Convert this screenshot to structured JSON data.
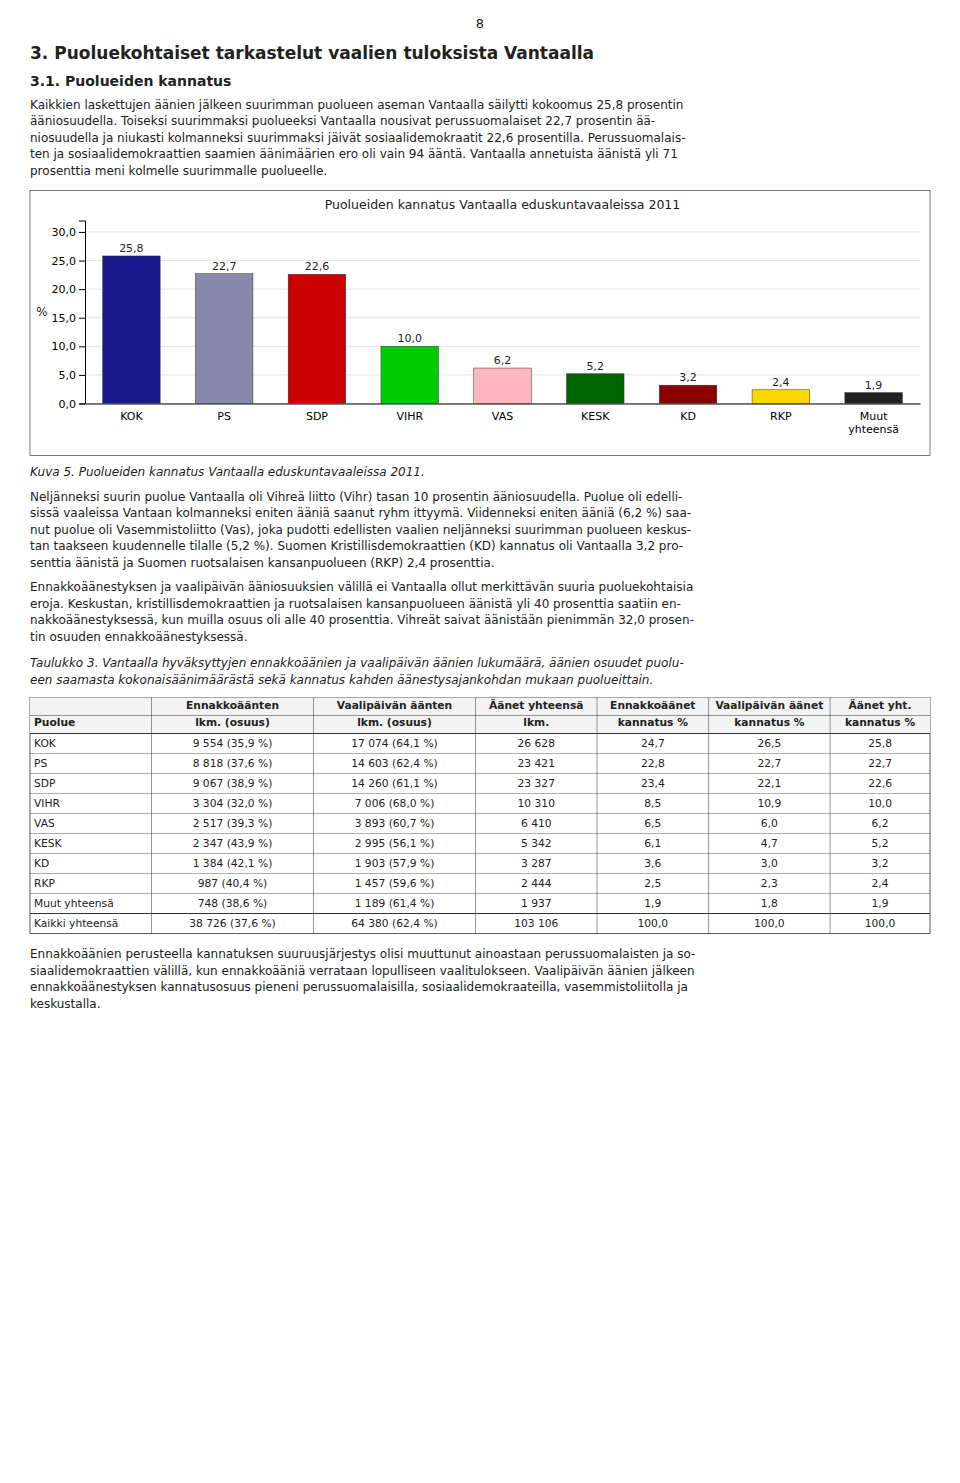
{
  "page_number": "8",
  "section_title": "3. Puoluekohtaiset tarkastelut vaalien tuloksista Vantaalla",
  "subsection_title": "3.1. Puolueiden kannatus",
  "para1_lines": [
    "Kaikkien laskettujen äänien jälkeen suurimman puolueen aseman Vantaalla säilytti kokoomus 25,8 prosentin",
    "ääniosuudella. Toiseksi suurimmaksi puolueeksi Vantaalla nousivat perussuomalaiset 22,7 prosentin ää-",
    "niosuudella ja niukasti kolmanneksi suurimmaksi jäivät sosiaalidemokraatit 22,6 prosentilla. Perussuomalais-",
    "ten ja sosiaalidemokraattien saamien äänimäärien ero oli vain 94 ääntä. Vantaalla annetuista äänistä yli 71",
    "prosenttia meni kolmelle suurimmalle puolueelle."
  ],
  "chart_data": {
    "type": "bar",
    "title": "Puolueiden kannatus Vantaalla eduskuntavaaleissa 2011",
    "ylabel": "%",
    "categories": [
      "KOK",
      "PS",
      "SDP",
      "VIHR",
      "VAS",
      "KESK",
      "KD",
      "RKP",
      "Muut\nyhteensä"
    ],
    "values": [
      25.8,
      22.7,
      22.6,
      10.0,
      6.2,
      5.2,
      3.2,
      2.4,
      1.9
    ],
    "value_labels": [
      "25,8",
      "22,7",
      "22,6",
      "10,0",
      "6,2",
      "5,2",
      "3,2",
      "2,4",
      "1,9"
    ],
    "colors": [
      "#1a1a8c",
      "#8888AA",
      "#CC0000",
      "#00CC00",
      "#FFB6C1",
      "#006400",
      "#8B0000",
      "#FFD700",
      "#222222"
    ],
    "ylim": [
      0,
      32
    ],
    "yticks": [
      {
        "value": 0,
        "label": "0,0"
      },
      {
        "value": 5,
        "label": "5,0"
      },
      {
        "value": 10,
        "label": "10,0"
      },
      {
        "value": 15,
        "label": "15,0"
      },
      {
        "value": 20,
        "label": "20,0"
      },
      {
        "value": 25,
        "label": "25,0"
      },
      {
        "value": 30,
        "label": "30,0"
      }
    ],
    "grid": true,
    "data_labels": true
  },
  "figure_caption": "Kuva 5. Puolueiden kannatus Vantaalla eduskuntavaaleissa 2011.",
  "para2_lines": [
    "Neljänneksi suurin puolue Vantaalla oli Vihreä liitto (Vihr) tasan 10 prosentin ääniosuudella. Puolue oli edelli-",
    "sissä vaaleissa Vantaan kolmanneksi eniten ääniä saanut ryhm ittyymä. Viidenneksi eniten ääniä (6,2 %) saa-",
    "nut puolue oli Vasemmistoliitto (Vas), joka pudotti edellisten vaalien neljänneksi suurimman puolueen keskus-",
    "tan taakseen kuudennelle tilalle (5,2 %). Suomen Kristillisdemokraattien (KD) kannatus oli Vantaalla 3,2 pro-",
    "senttia äänistä ja Suomen ruotsalaisen kansanpuolueen (RKP) 2,4 prosenttia."
  ],
  "para3_lines": [
    "Ennakkoäänestyksen ja vaalipäivän ääniosuuksien välillä ei Vantaalla ollut merkittävän suuria puoluekohtaisia",
    "eroja. Keskustan, kristillisdemokraattien ja ruotsalaisen kansanpuolueen äänistä yli 40 prosenttia saatiin en-",
    "nakkoäänestyksessä, kun muilla osuus oli alle 40 prosenttia. Vihreät saivat äänistään pienimmän 32,0 prosen-",
    "tin osuuden ennakkoäänestyksessä."
  ],
  "table_caption_lines": [
    "Taulukko 3. Vantaalla hyväksyttyjen ennakkoäänien ja vaalipäivän äänien lukumäärä, äänien osuudet puolu-",
    "een saamasta kokonaisäänimäärästä sekä kannatus kahden äänestysajankohdan mukaan puolueittain."
  ],
  "table": {
    "header_row1": [
      null,
      "Ennakkoäänten",
      "Vaalipäivän äänten",
      "Äänet yhteensä",
      "Ennakkoäänet",
      "Vaalipäivän äänet",
      "Äänet yht."
    ],
    "header_row2": [
      "Puolue",
      "lkm. (osuus)",
      "lkm. (osuus)",
      "lkm.",
      "kannatus %",
      "kannatus %",
      "kannatus %"
    ],
    "rows": [
      [
        "KOK",
        "9 554 (35,9 %)",
        "17 074 (64,1 %)",
        "26 628",
        "24,7",
        "26,5",
        "25,8"
      ],
      [
        "PS",
        "8 818 (37,6 %)",
        "14 603 (62,4 %)",
        "23 421",
        "22,8",
        "22,7",
        "22,7"
      ],
      [
        "SDP",
        "9 067 (38,9 %)",
        "14 260 (61,1 %)",
        "23 327",
        "23,4",
        "22,1",
        "22,6"
      ],
      [
        "VIHR",
        "3 304 (32,0 %)",
        "7 006 (68,0 %)",
        "10 310",
        "8,5",
        "10,9",
        "10,0"
      ],
      [
        "VAS",
        "2 517 (39,3 %)",
        "3 893 (60,7 %)",
        "6 410",
        "6,5",
        "6,0",
        "6,2"
      ],
      [
        "KESK",
        "2 347 (43,9 %)",
        "2 995 (56,1 %)",
        "5 342",
        "6,1",
        "4,7",
        "5,2"
      ],
      [
        "KD",
        "1 384 (42,1 %)",
        "1 903 (57,9 %)",
        "3 287",
        "3,6",
        "3,0",
        "3,2"
      ],
      [
        "RKP",
        "987 (40,4 %)",
        "1 457 (59,6 %)",
        "2 444",
        "2,5",
        "2,3",
        "2,4"
      ],
      [
        "Muut yhteensä",
        "748 (38,6 %)",
        "1 189 (61,4 %)",
        "1 937",
        "1,9",
        "1,8",
        "1,9"
      ],
      [
        "Kaikki yhteensä",
        "38 726 (37,6 %)",
        "64 380 (62,4 %)",
        "103 106",
        "100,0",
        "100,0",
        "100,0"
      ]
    ]
  },
  "para4_lines": [
    "Ennakkoäänien perusteella kannatuksen suuruusjärjestys olisi muuttunut ainoastaan perussuomalaisten ja so-",
    "siaalidemokraattien välillä, kun ennakkoääniä verrataan lopulliseen vaalitulokseen. Vaalipäivän äänien jälkeen",
    "ennakkoäänestyksen kannatusosuus pieneni perussuomalaisilla, sosiaalidemokraateilla, vasemmistoliitolla ja",
    "keskustalla."
  ]
}
